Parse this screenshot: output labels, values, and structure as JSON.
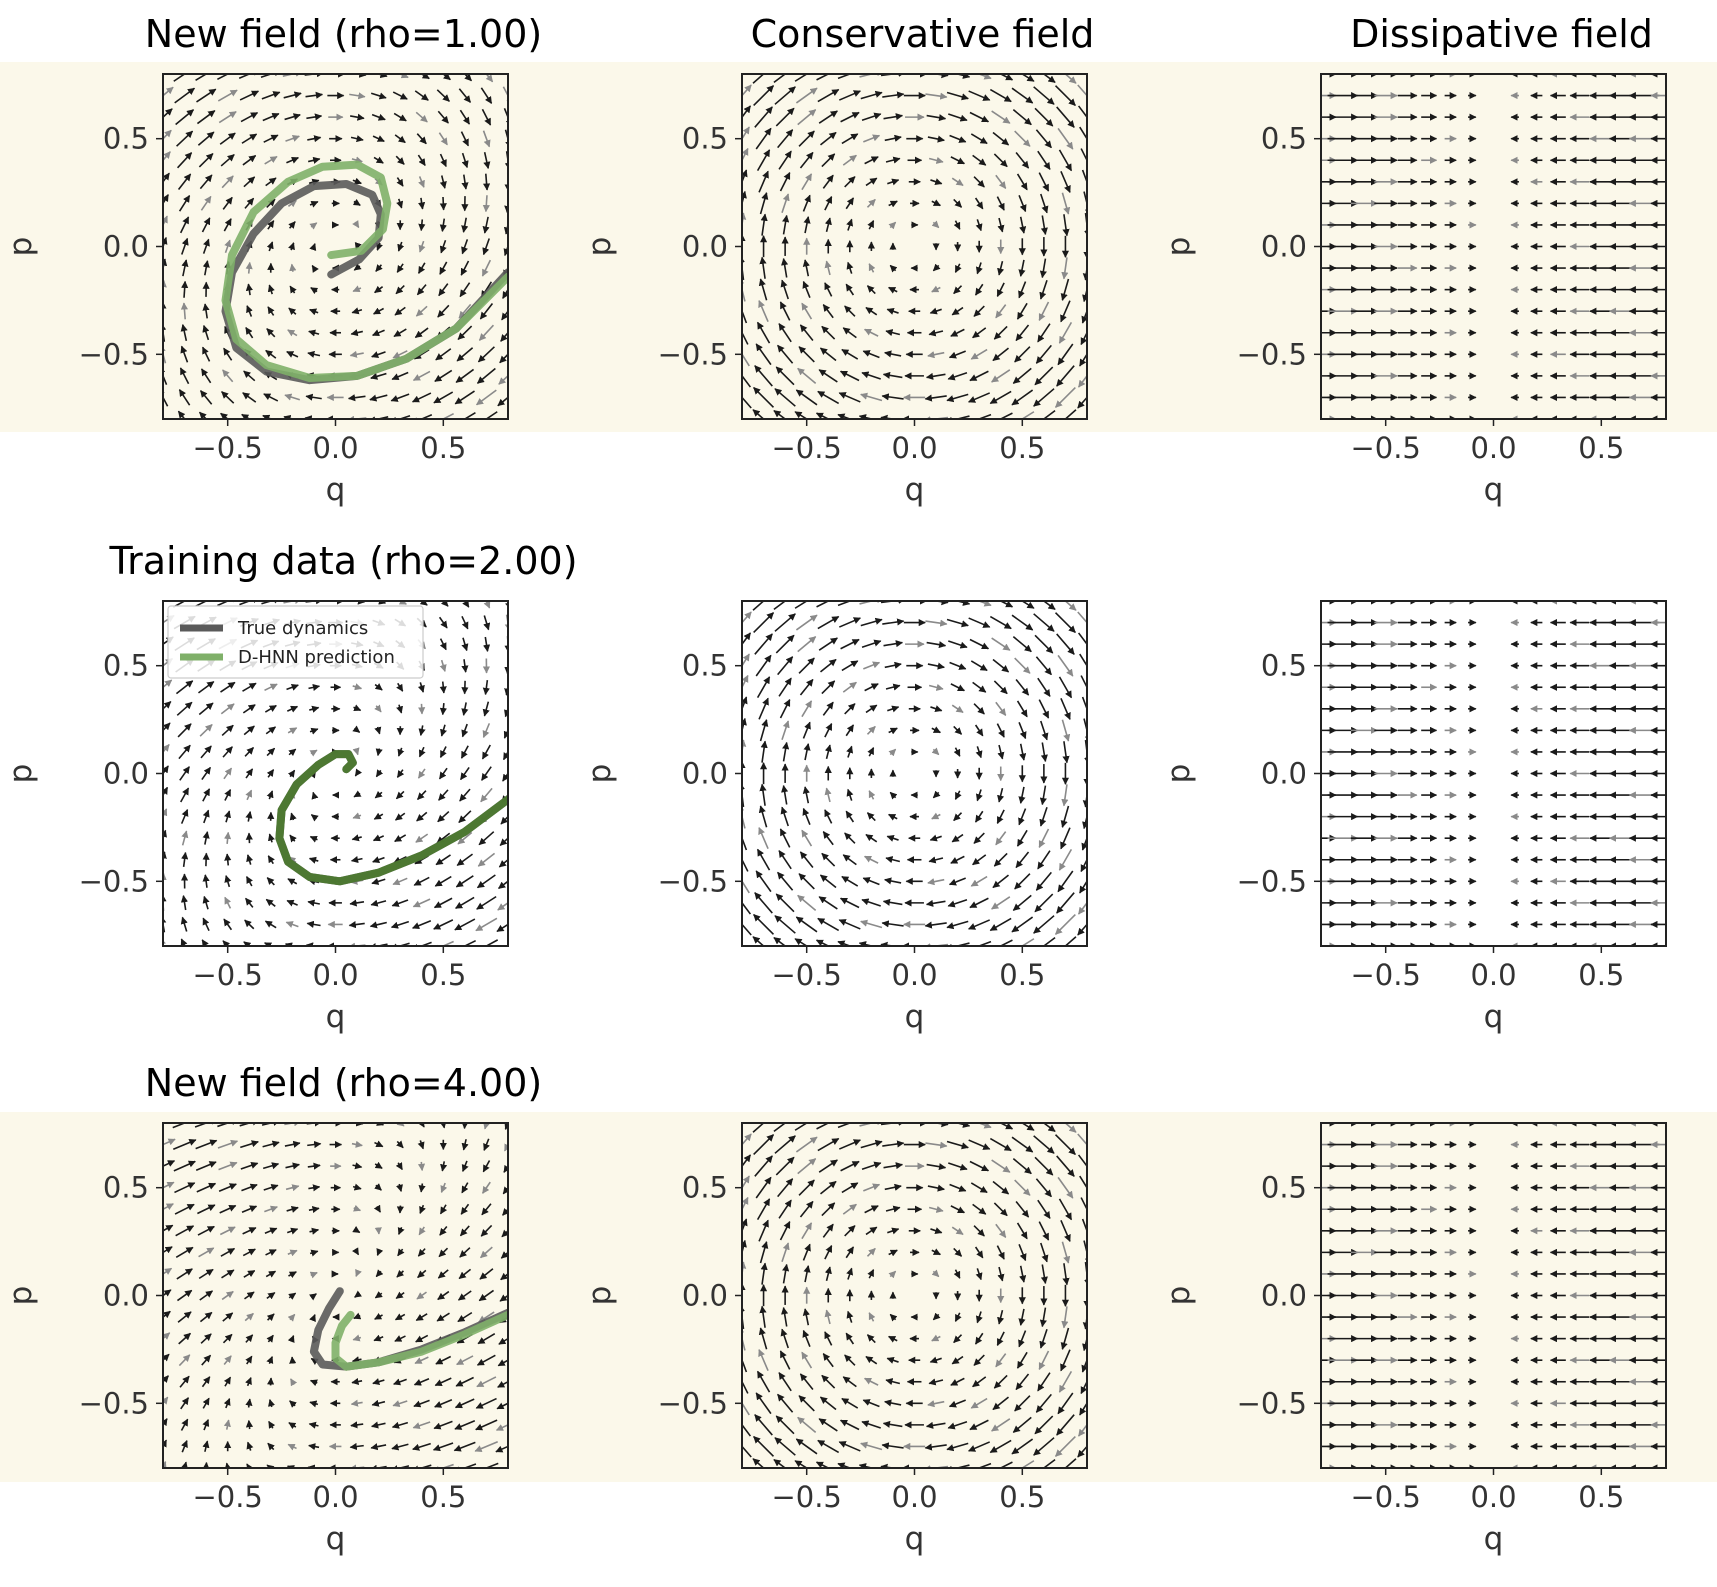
{
  "colors": {
    "band": "#fbf8ea",
    "panel_light": "#fbf8ea",
    "panel_white": "#ffffff",
    "true_dynamics": "#5a5a5a",
    "dhnn_light": "#7fb069",
    "dhnn_dark": "#4a7a2c",
    "arrow_dark": "#1a1a1a",
    "arrow_grey": "#8a8a8a"
  },
  "legend": {
    "entries": [
      "True dynamics",
      "D-HNN prediction"
    ],
    "placement": "upper-left",
    "panel": "row2-col1"
  },
  "chart_data": [
    {
      "id": "r1c1",
      "type": "quiver",
      "field": "full",
      "rho": 1.0,
      "title": "New field (rho=1.00)",
      "xlabel": "q",
      "ylabel": "p",
      "xlim": [
        -0.8,
        0.8
      ],
      "ylim": [
        -0.8,
        0.8
      ],
      "xticks": [
        "−0.5",
        "0.0",
        "0.5"
      ],
      "yticks": [
        "−0.5",
        "0.0",
        "0.5"
      ],
      "highlight": true,
      "grid": false,
      "series": [
        {
          "name": "True dynamics",
          "color": "#5a5a5a",
          "x": [
            -0.02,
            0.11,
            0.2,
            0.21,
            0.17,
            0.05,
            -0.1,
            -0.25,
            -0.38,
            -0.48,
            -0.51,
            -0.46,
            -0.32,
            -0.12,
            0.1,
            0.33,
            0.56,
            0.8
          ],
          "y": [
            -0.13,
            -0.06,
            0.04,
            0.15,
            0.24,
            0.29,
            0.28,
            0.2,
            0.06,
            -0.12,
            -0.3,
            -0.47,
            -0.58,
            -0.62,
            -0.6,
            -0.52,
            -0.38,
            -0.12
          ]
        },
        {
          "name": "D-HNN prediction",
          "color": "#7fb069",
          "x": [
            -0.02,
            0.12,
            0.22,
            0.24,
            0.21,
            0.1,
            -0.06,
            -0.22,
            -0.38,
            -0.48,
            -0.51,
            -0.46,
            -0.32,
            -0.12,
            0.1,
            0.33,
            0.56,
            0.8
          ],
          "y": [
            -0.04,
            -0.02,
            0.08,
            0.2,
            0.32,
            0.38,
            0.37,
            0.3,
            0.16,
            -0.04,
            -0.25,
            -0.43,
            -0.55,
            -0.61,
            -0.6,
            -0.52,
            -0.38,
            -0.14
          ]
        }
      ]
    },
    {
      "id": "r1c2",
      "type": "quiver",
      "field": "conservative",
      "rho": 1.0,
      "title": "Conservative field",
      "xlabel": "q",
      "ylabel": "p",
      "xlim": [
        -0.8,
        0.8
      ],
      "ylim": [
        -0.8,
        0.8
      ],
      "xticks": [
        "−0.5",
        "0.0",
        "0.5"
      ],
      "yticks": [
        "−0.5",
        "0.0",
        "0.5"
      ],
      "highlight": true,
      "grid": false,
      "series": []
    },
    {
      "id": "r1c3",
      "type": "quiver",
      "field": "dissipative",
      "rho": 1.0,
      "title": "Dissipative field",
      "xlabel": "q",
      "ylabel": "p",
      "xlim": [
        -0.8,
        0.8
      ],
      "ylim": [
        -0.8,
        0.8
      ],
      "xticks": [
        "−0.5",
        "0.0",
        "0.5"
      ],
      "yticks": [
        "−0.5",
        "0.0",
        "0.5"
      ],
      "highlight": true,
      "grid": false,
      "series": []
    },
    {
      "id": "r2c1",
      "type": "quiver",
      "field": "full",
      "rho": 2.0,
      "title": "Training data (rho=2.00)",
      "xlabel": "q",
      "ylabel": "p",
      "xlim": [
        -0.8,
        0.8
      ],
      "ylim": [
        -0.8,
        0.8
      ],
      "xticks": [
        "−0.5",
        "0.0",
        "0.5"
      ],
      "yticks": [
        "−0.5",
        "0.0",
        "0.5"
      ],
      "highlight": false,
      "grid": false,
      "series": [
        {
          "name": "True dynamics",
          "color": "#5a5a5a",
          "x": [
            0.05,
            0.08,
            0.06,
            0.0,
            -0.08,
            -0.18,
            -0.25,
            -0.26,
            -0.22,
            -0.12,
            0.02,
            0.2,
            0.4,
            0.6,
            0.8
          ],
          "y": [
            0.02,
            0.05,
            0.09,
            0.09,
            0.04,
            -0.05,
            -0.17,
            -0.3,
            -0.41,
            -0.48,
            -0.5,
            -0.46,
            -0.38,
            -0.27,
            -0.12
          ]
        },
        {
          "name": "D-HNN prediction",
          "color": "#4a7a2c",
          "x": [
            0.05,
            0.08,
            0.06,
            0.0,
            -0.08,
            -0.18,
            -0.25,
            -0.26,
            -0.22,
            -0.12,
            0.02,
            0.2,
            0.4,
            0.6,
            0.8
          ],
          "y": [
            0.02,
            0.05,
            0.09,
            0.09,
            0.04,
            -0.05,
            -0.17,
            -0.3,
            -0.41,
            -0.48,
            -0.5,
            -0.46,
            -0.38,
            -0.27,
            -0.12
          ]
        }
      ]
    },
    {
      "id": "r2c2",
      "type": "quiver",
      "field": "conservative",
      "rho": 2.0,
      "title": "",
      "xlabel": "q",
      "ylabel": "p",
      "xlim": [
        -0.8,
        0.8
      ],
      "ylim": [
        -0.8,
        0.8
      ],
      "xticks": [
        "−0.5",
        "0.0",
        "0.5"
      ],
      "yticks": [
        "−0.5",
        "0.0",
        "0.5"
      ],
      "highlight": false,
      "grid": false,
      "series": []
    },
    {
      "id": "r2c3",
      "type": "quiver",
      "field": "dissipative",
      "rho": 2.0,
      "title": "",
      "xlabel": "q",
      "ylabel": "p",
      "xlim": [
        -0.8,
        0.8
      ],
      "ylim": [
        -0.8,
        0.8
      ],
      "xticks": [
        "−0.5",
        "0.0",
        "0.5"
      ],
      "yticks": [
        "−0.5",
        "0.0",
        "0.5"
      ],
      "highlight": false,
      "grid": false,
      "series": []
    },
    {
      "id": "r3c1",
      "type": "quiver",
      "field": "full",
      "rho": 4.0,
      "title": "New field (rho=4.00)",
      "xlabel": "q",
      "ylabel": "p",
      "xlim": [
        -0.8,
        0.8
      ],
      "ylim": [
        -0.8,
        0.8
      ],
      "xticks": [
        "−0.5",
        "0.0",
        "0.5"
      ],
      "yticks": [
        "−0.5",
        "0.0",
        "0.5"
      ],
      "highlight": true,
      "grid": false,
      "series": [
        {
          "name": "True dynamics",
          "color": "#5a5a5a",
          "x": [
            0.02,
            -0.03,
            -0.08,
            -0.1,
            -0.06,
            0.05,
            0.2,
            0.4,
            0.6,
            0.8
          ],
          "y": [
            0.02,
            -0.06,
            -0.16,
            -0.26,
            -0.32,
            -0.33,
            -0.31,
            -0.25,
            -0.17,
            -0.08
          ]
        },
        {
          "name": "D-HNN prediction",
          "color": "#7fb069",
          "x": [
            0.07,
            0.03,
            0.0,
            0.0,
            0.05,
            0.2,
            0.4,
            0.6,
            0.8
          ],
          "y": [
            -0.09,
            -0.14,
            -0.22,
            -0.29,
            -0.33,
            -0.31,
            -0.26,
            -0.18,
            -0.09
          ]
        }
      ]
    },
    {
      "id": "r3c2",
      "type": "quiver",
      "field": "conservative",
      "rho": 4.0,
      "title": "",
      "xlabel": "q",
      "ylabel": "p",
      "xlim": [
        -0.8,
        0.8
      ],
      "ylim": [
        -0.8,
        0.8
      ],
      "xticks": [
        "−0.5",
        "0.0",
        "0.5"
      ],
      "yticks": [
        "−0.5",
        "0.0",
        "0.5"
      ],
      "highlight": true,
      "grid": false,
      "series": []
    },
    {
      "id": "r3c3",
      "type": "quiver",
      "field": "dissipative",
      "rho": 4.0,
      "title": "",
      "xlabel": "q",
      "ylabel": "p",
      "xlim": [
        -0.8,
        0.8
      ],
      "ylim": [
        -0.8,
        0.8
      ],
      "xticks": [
        "−0.5",
        "0.0",
        "0.5"
      ],
      "yticks": [
        "−0.5",
        "0.0",
        "0.5"
      ],
      "highlight": true,
      "grid": false,
      "series": []
    }
  ]
}
